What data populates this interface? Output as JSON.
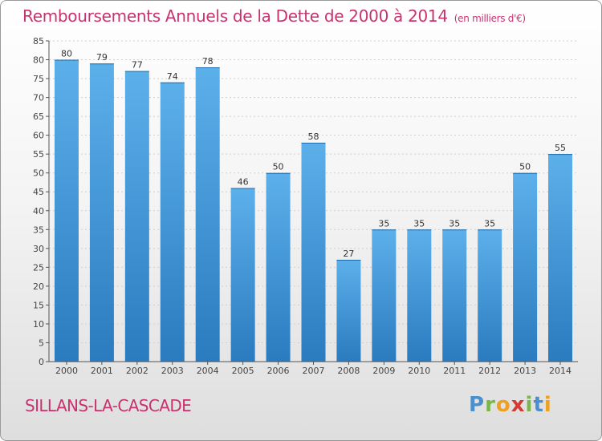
{
  "header": {
    "title": "Remboursements Annuels de la Dette de 2000 à 2014",
    "unit": "(en milliers d'€)"
  },
  "footer": {
    "commune": "SILLANS-LA-CASCADE",
    "logo_text": "Proxiti"
  },
  "colors": {
    "title": "#c8326e",
    "bar_light": "#5cb0ea",
    "bar_dark": "#2a7bbf",
    "axis": "#555555"
  },
  "chart_data": {
    "type": "bar",
    "title": "Remboursements Annuels de la Dette de 2000 à 2014",
    "xlabel": "",
    "ylabel": "",
    "categories": [
      "2000",
      "2001",
      "2002",
      "2003",
      "2004",
      "2005",
      "2006",
      "2007",
      "2008",
      "2009",
      "2010",
      "2011",
      "2012",
      "2013",
      "2014"
    ],
    "values": [
      80,
      79,
      77,
      74,
      78,
      46,
      50,
      58,
      27,
      35,
      35,
      35,
      35,
      50,
      55
    ],
    "ylim": [
      0,
      85
    ],
    "yticks": [
      0,
      5,
      10,
      15,
      20,
      25,
      30,
      35,
      40,
      45,
      50,
      55,
      60,
      65,
      70,
      75,
      80,
      85
    ],
    "grid": true,
    "legend": "none"
  }
}
